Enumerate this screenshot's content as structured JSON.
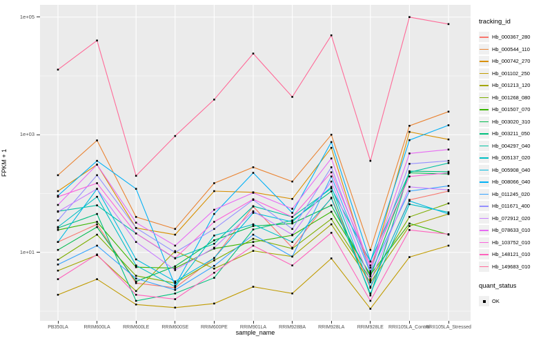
{
  "figure": {
    "x_axis": {
      "label": "sample_name"
    },
    "y_axis": {
      "label": "FPKM + 1"
    },
    "legend": {
      "tracking_title": "tracking_id",
      "quant_title": "quant_status",
      "quant_items": [
        {
          "label": "OK",
          "marker": "black-square"
        }
      ]
    },
    "style": {
      "panel_bg": "#EBEBEB",
      "grid_color": "#FFFFFF",
      "tick_color": "#333333",
      "tick_text_color": "#4D4D4D",
      "point_color": "#000000",
      "legend_key_bg": "#F0F0F0"
    }
  },
  "chart_data": {
    "type": "line",
    "title": "",
    "xlabel": "sample_name",
    "ylabel": "FPKM + 1",
    "y_scale": "log10",
    "ylim": [
      0.7,
      160000
    ],
    "grid": true,
    "legend_position": "right",
    "point_marker": "black-square",
    "y_ticks": [
      {
        "label": "1e+05",
        "log10": 5
      },
      {
        "label": "1e+03",
        "log10": 3
      },
      {
        "label": "1e+01",
        "log10": 1
      }
    ],
    "y_minor_log10": [
      0,
      2,
      4
    ],
    "categories": [
      "PB350LA",
      "RRIM600LA",
      "RRIM600LE",
      "RRIM600SE",
      "RRIM600PE",
      "RRIM901LA",
      "RRIM928BA",
      "RRIM928LA",
      "RRIM928LE",
      "RRII105LA_Control",
      "RRII105LA_Stressed"
    ],
    "series": [
      {
        "name": "Hb_000367_280",
        "color": "#F8766D",
        "values": [
          15,
          30,
          3,
          2.5,
          8,
          60,
          12,
          85,
          2.5,
          78,
          110
        ]
      },
      {
        "name": "Hb_000544_110",
        "color": "#EA8331",
        "values": [
          205,
          800,
          40,
          25,
          150,
          280,
          160,
          1000,
          11,
          1420,
          2470
        ]
      },
      {
        "name": "Hb_000742_270",
        "color": "#D89000",
        "values": [
          110,
          310,
          26,
          20,
          110,
          105,
          81,
          600,
          4.5,
          1120,
          830
        ]
      },
      {
        "name": "Hb_001102_250",
        "color": "#C09B00",
        "values": [
          1.9,
          3.5,
          1.3,
          1.15,
          1.35,
          2.6,
          2.0,
          7.9,
          1.1,
          8.3,
          13
        ]
      },
      {
        "name": "Hb_001213_120",
        "color": "#A3A500",
        "values": [
          4.9,
          9,
          2.2,
          10.5,
          5.3,
          10.6,
          8.5,
          30,
          3.1,
          28,
          45
        ]
      },
      {
        "name": "Hb_001268_080",
        "color": "#7CAE00",
        "values": [
          7.5,
          20,
          4,
          3,
          7.3,
          17,
          11.6,
          37,
          3.5,
          40,
          68
        ]
      },
      {
        "name": "Hb_001507_070",
        "color": "#39B600",
        "values": [
          24,
          33,
          5.6,
          5.4,
          11.6,
          15,
          19.5,
          49,
          4.2,
          31,
          20
        ]
      },
      {
        "name": "Hb_003020_310",
        "color": "#00BB4E",
        "values": [
          11,
          27,
          3.2,
          5.8,
          16,
          28,
          31,
          63,
          3.9,
          225,
          215
        ]
      },
      {
        "name": "Hb_003211_050",
        "color": "#00BF7D",
        "values": [
          26,
          45,
          1.5,
          2,
          3.7,
          24.5,
          35,
          109,
          1.85,
          240,
          235
        ]
      },
      {
        "name": "Hb_004297_040",
        "color": "#00C1A3",
        "values": [
          50,
          63,
          21,
          7.9,
          14,
          61,
          40,
          122,
          7,
          230,
          330
        ]
      },
      {
        "name": "Hb_005137_020",
        "color": "#00BFC4",
        "values": [
          27,
          88,
          6,
          2.6,
          19.3,
          30,
          15,
          83,
          2.0,
          66,
          48
        ]
      },
      {
        "name": "Hb_005908_040",
        "color": "#00BAE0",
        "values": [
          15,
          120,
          7.6,
          3.2,
          8,
          47,
          33,
          130,
          2.6,
          75,
          45
        ]
      },
      {
        "name": "Hb_008066_040",
        "color": "#00B0F6",
        "values": [
          92,
          360,
          120,
          2.7,
          45,
          225,
          47,
          750,
          7,
          810,
          1450
        ]
      },
      {
        "name": "Hb_011245_020",
        "color": "#35A2FF",
        "values": [
          6.2,
          13,
          3.6,
          2.3,
          5.9,
          20,
          8.5,
          195,
          4.5,
          110,
          135
        ]
      },
      {
        "name": "Hb_011671_400",
        "color": "#9590FF",
        "values": [
          35,
          205,
          26,
          10,
          25,
          78,
          25,
          280,
          4.8,
          320,
          360
        ]
      },
      {
        "name": "Hb_072912_020",
        "color": "#C77CFF",
        "values": [
          49,
          120,
          15,
          5,
          12,
          50,
          20,
          160,
          3.3,
          130,
          115
        ]
      },
      {
        "name": "Hb_078633_010",
        "color": "#E76BF3",
        "values": [
          64,
          310,
          32,
          13,
          53,
          103,
          55,
          395,
          5.5,
          480,
          560
        ]
      },
      {
        "name": "Hb_103752_010",
        "color": "#FA62DB",
        "values": [
          88,
          150,
          21,
          8,
          33,
          80,
          40,
          230,
          6,
          195,
          225
        ]
      },
      {
        "name": "Hb_148121_010",
        "color": "#FF62BC",
        "values": [
          3.5,
          9.2,
          1.9,
          1.6,
          4.5,
          13,
          6,
          21.5,
          1.5,
          24,
          20.4
        ]
      },
      {
        "name": "Hb_149683_010",
        "color": "#FF6A98",
        "values": [
          12800,
          40000,
          200,
          950,
          3960,
          24000,
          4400,
          49000,
          360,
          100000,
          76000
        ]
      }
    ]
  }
}
